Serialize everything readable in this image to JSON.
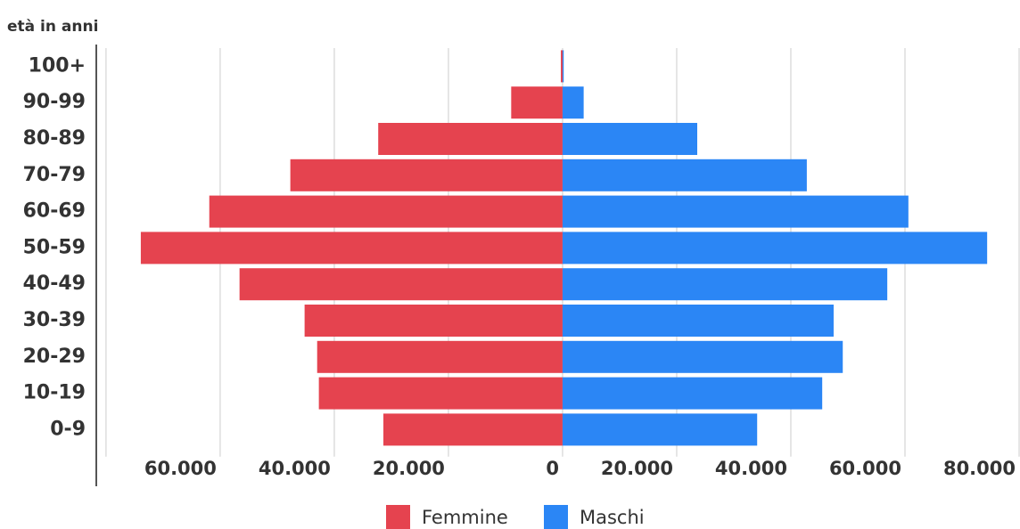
{
  "chart_data": {
    "type": "bar",
    "orientation": "horizontal",
    "stacked": true,
    "ylabel": "età in anni",
    "categories": [
      "100+",
      "90-99",
      "80-89",
      "70-79",
      "60-69",
      "50-59",
      "40-49",
      "30-39",
      "20-29",
      "10-19",
      "0-9"
    ],
    "series": [
      {
        "name": "Femmine",
        "color": "#e5434f",
        "values": [
          -300,
          -9000,
          -32300,
          -47700,
          -61900,
          -73900,
          -56600,
          -45200,
          -43000,
          -42700,
          -31400
        ]
      },
      {
        "name": "Maschi",
        "color": "#2b86f5",
        "values": [
          200,
          3700,
          23600,
          42800,
          60600,
          74400,
          56900,
          47500,
          49100,
          45500,
          34100
        ]
      }
    ],
    "xlim": [
      -81700,
      80000
    ],
    "xticks": [
      {
        "value": -80000,
        "label": ""
      },
      {
        "value": -60000,
        "label": "60.000"
      },
      {
        "value": -40000,
        "label": "40.000"
      },
      {
        "value": -20000,
        "label": "20.000"
      },
      0,
      {
        "value": 20000,
        "label": "20.000"
      },
      {
        "value": 40000,
        "label": "40.000"
      },
      {
        "value": 60000,
        "label": "60.000"
      },
      {
        "value": 80000,
        "label": "80.000"
      }
    ],
    "grid": true,
    "legend": "bottom"
  }
}
